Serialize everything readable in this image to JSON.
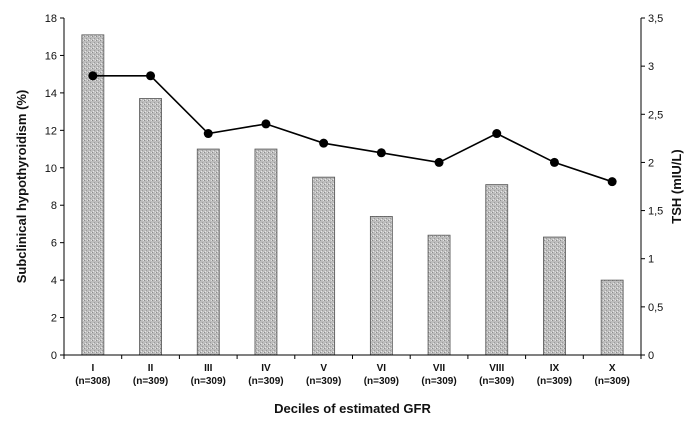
{
  "chart_data": {
    "type": "bar",
    "xlabel": "Deciles of estimated GFR",
    "ylabel": "Subclinical hypothyroidism (%)",
    "y2label": "TSH (mIU/L)",
    "categories": [
      "I",
      "II",
      "III",
      "IV",
      "V",
      "VI",
      "VII",
      "VIII",
      "IX",
      "X"
    ],
    "category_counts": [
      "(n=308)",
      "(n=309)",
      "(n=309)",
      "(n=309)",
      "(n=309)",
      "(n=309)",
      "(n=309)",
      "(n=309)",
      "(n=309)",
      "(n=309)"
    ],
    "ylim": [
      0,
      18
    ],
    "y_ticks": [
      "0",
      "2",
      "4",
      "6",
      "8",
      "10",
      "12",
      "14",
      "16",
      "18"
    ],
    "y2lim": [
      0,
      3.5
    ],
    "y2_ticks": [
      "0",
      "0,5",
      "1",
      "1,5",
      "2",
      "2,5",
      "3",
      "3,5"
    ],
    "series": [
      {
        "type": "bar",
        "axis": "left",
        "values": [
          17.1,
          13.7,
          11.0,
          11.0,
          9.5,
          7.4,
          6.4,
          9.1,
          6.3,
          4.0
        ],
        "color": "#b8b8b8"
      },
      {
        "type": "line",
        "axis": "right",
        "values": [
          2.9,
          2.9,
          2.3,
          2.4,
          2.2,
          2.1,
          2.0,
          2.3,
          2.0,
          1.8
        ],
        "color": "#000000"
      }
    ],
    "grid": false
  }
}
